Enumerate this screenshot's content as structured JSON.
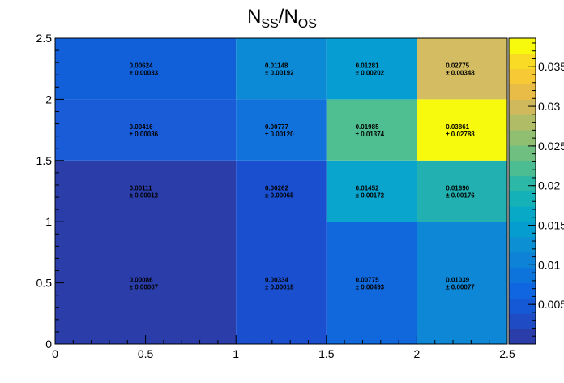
{
  "chart_data": {
    "type": "heatmap",
    "title": {
      "base1": "N",
      "sub1": "SS",
      "sep": "/",
      "base2": "N",
      "sub2": "OS"
    },
    "xlabel": "",
    "ylabel": "",
    "xlim": [
      0,
      2.5
    ],
    "ylim": [
      0,
      2.5
    ],
    "x_edges": [
      0,
      1,
      1.5,
      2,
      2.5
    ],
    "y_edges": [
      0,
      1,
      1.5,
      2,
      2.5
    ],
    "x_tick_labels": [
      "0",
      "0.5",
      "1",
      "1.5",
      "2",
      "2.5"
    ],
    "y_tick_labels": [
      "0",
      "0.5",
      "1",
      "1.5",
      "2",
      "2.5"
    ],
    "zlim": [
      0,
      0.03861
    ],
    "colorbar_tick_values": [
      0.005,
      0.01,
      0.015,
      0.02,
      0.025,
      0.03,
      0.035
    ],
    "colorbar_tick_labels": [
      "0.005",
      "0.01",
      "0.015",
      "0.02",
      "0.025",
      "0.03",
      "0.035"
    ],
    "cells": [
      {
        "row": 0,
        "col": 0,
        "value": 0.00086,
        "value_text": "0.00086",
        "error_text": "± 0.00007",
        "color": "#2a3da8"
      },
      {
        "row": 0,
        "col": 1,
        "value": 0.00334,
        "value_text": "0.00334",
        "error_text": "± 0.00018",
        "color": "#1a4fd0"
      },
      {
        "row": 0,
        "col": 2,
        "value": 0.00775,
        "value_text": "0.00775",
        "error_text": "± 0.00493",
        "color": "#1168dd"
      },
      {
        "row": 0,
        "col": 3,
        "value": 0.01039,
        "value_text": "0.01039",
        "error_text": "± 0.00077",
        "color": "#0e88d6"
      },
      {
        "row": 1,
        "col": 0,
        "value": 0.00111,
        "value_text": "0.00111",
        "error_text": "± 0.00012",
        "color": "#2a3da8"
      },
      {
        "row": 1,
        "col": 1,
        "value": 0.00262,
        "value_text": "0.00262",
        "error_text": "± 0.00065",
        "color": "#1a4fd0"
      },
      {
        "row": 1,
        "col": 2,
        "value": 0.01452,
        "value_text": "0.01452",
        "error_text": "± 0.00172",
        "color": "#0aa5cc"
      },
      {
        "row": 1,
        "col": 3,
        "value": 0.0169,
        "value_text": "0.01690",
        "error_text": "± 0.00176",
        "color": "#22b0b0"
      },
      {
        "row": 2,
        "col": 0,
        "value": 0.00416,
        "value_text": "0.00416",
        "error_text": "± 0.00036",
        "color": "#1a5cd8"
      },
      {
        "row": 2,
        "col": 1,
        "value": 0.00777,
        "value_text": "0.00777",
        "error_text": "± 0.00120",
        "color": "#1172db"
      },
      {
        "row": 2,
        "col": 2,
        "value": 0.01985,
        "value_text": "0.01985",
        "error_text": "± 0.01374",
        "color": "#4fbf92"
      },
      {
        "row": 2,
        "col": 3,
        "value": 0.03861,
        "value_text": "0.03861",
        "error_text": "± 0.02788",
        "color": "#f8fa0d"
      },
      {
        "row": 3,
        "col": 0,
        "value": 0.00624,
        "value_text": "0.00624",
        "error_text": "± 0.00033",
        "color": "#1160d9"
      },
      {
        "row": 3,
        "col": 1,
        "value": 0.01148,
        "value_text": "0.01148",
        "error_text": "± 0.00192",
        "color": "#0d8ad6"
      },
      {
        "row": 3,
        "col": 2,
        "value": 0.01281,
        "value_text": "0.01281",
        "error_text": "± 0.00202",
        "color": "#069ed2"
      },
      {
        "row": 3,
        "col": 3,
        "value": 0.02775,
        "value_text": "0.02775",
        "error_text": "± 0.00348",
        "color": "#d4bc62"
      }
    ],
    "colorscale": [
      "#2a3da8",
      "#1f4cc4",
      "#1559d6",
      "#0f66e0",
      "#0d74dc",
      "#0e82d6",
      "#0c90d3",
      "#059dd0",
      "#08a8c7",
      "#14b2b8",
      "#2cb8a6",
      "#4cbd92",
      "#6fbf80",
      "#90bf72",
      "#b0bd66",
      "#cfb95c",
      "#e9bc48",
      "#f7c935",
      "#f9da25",
      "#f8fa0d"
    ],
    "grid": false,
    "legend": "colorbar-right"
  }
}
